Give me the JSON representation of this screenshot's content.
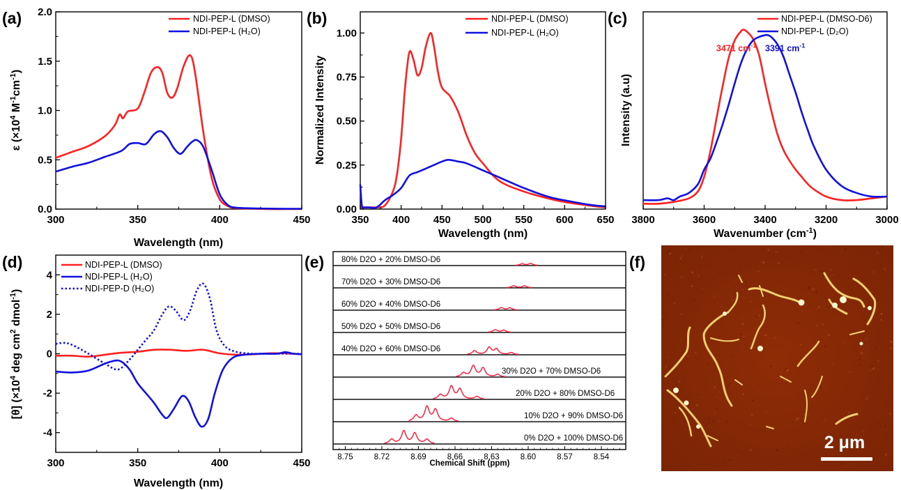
{
  "panels": [
    {
      "id": "a",
      "label": "(a)",
      "chart_data": {
        "type": "line",
        "xlabel": "Wavelength (nm)",
        "ylabel_pre": "ε (×10",
        "ylabel_sup1": "4",
        "ylabel_mid": " M",
        "ylabel_sup2": "-1",
        "ylabel_mid2": "cm",
        "ylabel_sup3": "-1",
        "ylabel_post": ")",
        "xlim": [
          300,
          450
        ],
        "ylim": [
          0,
          2.0
        ],
        "xticks": [
          300,
          350,
          400,
          450
        ],
        "yticks": [
          0.0,
          0.5,
          1.0,
          1.5,
          2.0
        ],
        "ytick_labels": [
          "0.0",
          "0.5",
          "1.0",
          "1.5",
          "2.0"
        ],
        "legend_position": "top-right",
        "series": [
          {
            "name": "NDI-PEP-L (DMSO)",
            "color": "#ff2020",
            "x": [
              300,
              310,
              320,
              330,
              336,
              339,
              341,
              344,
              350,
              354,
              358,
              362,
              365,
              368,
              371,
              374,
              378,
              382,
              385,
              390,
              395,
              400,
              405,
              410,
              420,
              430,
              440,
              450
            ],
            "y": [
              0.52,
              0.58,
              0.64,
              0.74,
              0.85,
              0.96,
              0.92,
              0.99,
              1.02,
              1.18,
              1.38,
              1.44,
              1.38,
              1.18,
              1.13,
              1.22,
              1.45,
              1.56,
              1.38,
              0.78,
              0.32,
              0.1,
              0.03,
              0.01,
              0.005,
              0.0,
              0.0,
              0.0
            ]
          },
          {
            "name": "NDI-PEP-L (H₂O)",
            "color": "#1010e0",
            "x": [
              300,
              310,
              320,
              330,
              340,
              345,
              350,
              355,
              360,
              364,
              368,
              372,
              376,
              380,
              383,
              386,
              390,
              395,
              400,
              405,
              410,
              420,
              430,
              440,
              450
            ],
            "y": [
              0.38,
              0.43,
              0.47,
              0.53,
              0.59,
              0.66,
              0.67,
              0.66,
              0.76,
              0.79,
              0.73,
              0.62,
              0.56,
              0.63,
              0.68,
              0.7,
              0.63,
              0.4,
              0.15,
              0.04,
              0.015,
              0.008,
              0.005,
              0.003,
              0.003
            ]
          }
        ]
      }
    },
    {
      "id": "b",
      "label": "(b)",
      "chart_data": {
        "type": "line",
        "xlabel": "Wavelength (nm)",
        "ylabel": "Normalized Intensity",
        "xlim": [
          350,
          650
        ],
        "ylim": [
          0,
          1.12
        ],
        "xticks": [
          350,
          400,
          450,
          500,
          550,
          600,
          650
        ],
        "yticks": [
          0.0,
          0.25,
          0.5,
          0.75,
          1.0
        ],
        "ytick_labels": [
          "0.00",
          "0.25",
          "0.50",
          "0.75",
          "1.00"
        ],
        "legend_position": "top-right",
        "series": [
          {
            "name": "NDI-PEP-L (DMSO)",
            "color": "#ff2020",
            "x": [
              350,
              360,
              370,
              380,
              390,
              395,
              400,
              405,
              410,
              415,
              420,
              425,
              430,
              436,
              440,
              445,
              450,
              460,
              470,
              480,
              490,
              500,
              520,
              550,
              580,
              600,
              630,
              650
            ],
            "y": [
              0.01,
              0.01,
              0.01,
              0.02,
              0.1,
              0.2,
              0.4,
              0.7,
              0.89,
              0.85,
              0.76,
              0.8,
              0.92,
              1.0,
              0.93,
              0.78,
              0.69,
              0.64,
              0.55,
              0.42,
              0.32,
              0.26,
              0.16,
              0.1,
              0.06,
              0.04,
              0.02,
              0.01
            ]
          },
          {
            "name": "NDI-PEP-L (H₂O)",
            "color": "#1010e0",
            "x": [
              350,
              352,
              355,
              360,
              370,
              380,
              390,
              400,
              410,
              420,
              430,
              440,
              450,
              458,
              470,
              480,
              500,
              520,
              550,
              580,
              600,
              630,
              650
            ],
            "y": [
              0.14,
              0.02,
              0.01,
              0.01,
              0.01,
              0.05,
              0.08,
              0.12,
              0.19,
              0.21,
              0.23,
              0.25,
              0.27,
              0.28,
              0.27,
              0.26,
              0.22,
              0.18,
              0.12,
              0.07,
              0.05,
              0.025,
              0.015
            ]
          }
        ]
      }
    },
    {
      "id": "c",
      "label": "(c)",
      "chart_data": {
        "type": "line",
        "xlabel_pre": "Wavenumber (cm",
        "xlabel_sup": "-1",
        "xlabel_post": ")",
        "ylabel": "Intensity (a.u)",
        "xlim": [
          3800,
          3000
        ],
        "ylim": [
          0,
          1.1
        ],
        "xticks": [
          3800,
          3600,
          3400,
          3200,
          3000
        ],
        "legend_position": "top-right",
        "annotations": [
          {
            "text": "3471 cm",
            "sup": "-1",
            "color": "#ff2020",
            "x": 3560,
            "y": 0.88
          },
          {
            "text": "3391 cm",
            "sup": "-1",
            "color": "#1010e0",
            "x": 3400,
            "y": 0.88
          }
        ],
        "series": [
          {
            "name": "NDI-PEP-L (DMSO-D6)",
            "color": "#ff2020",
            "x": [
              3800,
              3750,
              3700,
              3650,
              3620,
              3600,
              3580,
              3560,
              3540,
              3520,
              3500,
              3480,
              3471,
              3460,
              3440,
              3420,
              3400,
              3380,
              3360,
              3340,
              3320,
              3300,
              3280,
              3260,
              3240,
              3200,
              3150,
              3100,
              3050,
              3000
            ],
            "y": [
              0.03,
              0.03,
              0.04,
              0.06,
              0.1,
              0.18,
              0.32,
              0.5,
              0.68,
              0.84,
              0.94,
              0.99,
              1.0,
              0.99,
              0.95,
              0.86,
              0.7,
              0.55,
              0.42,
              0.33,
              0.27,
              0.22,
              0.18,
              0.14,
              0.11,
              0.07,
              0.05,
              0.05,
              0.06,
              0.07
            ]
          },
          {
            "name": "NDI-PEP-L (D₂O)",
            "color": "#1010e0",
            "x": [
              3800,
              3750,
              3720,
              3700,
              3680,
              3650,
              3620,
              3600,
              3580,
              3560,
              3540,
              3520,
              3500,
              3480,
              3460,
              3440,
              3420,
              3400,
              3391,
              3380,
              3360,
              3340,
              3320,
              3300,
              3280,
              3260,
              3240,
              3200,
              3150,
              3100,
              3050,
              3000
            ],
            "y": [
              0.05,
              0.05,
              0.06,
              0.05,
              0.07,
              0.09,
              0.14,
              0.22,
              0.28,
              0.37,
              0.47,
              0.58,
              0.7,
              0.81,
              0.89,
              0.94,
              0.96,
              0.97,
              0.97,
              0.96,
              0.92,
              0.85,
              0.75,
              0.65,
              0.54,
              0.44,
              0.35,
              0.22,
              0.13,
              0.09,
              0.07,
              0.07
            ]
          }
        ]
      }
    },
    {
      "id": "d",
      "label": "(d)",
      "chart_data": {
        "type": "line",
        "xlabel": "Wavelength (nm)",
        "ylabel_pre": "[θ] (×10",
        "ylabel_sup1": "4",
        "ylabel_mid": " deg cm",
        "ylabel_sup2": "2",
        "ylabel_mid2": " dmol",
        "ylabel_sup3": "-1",
        "ylabel_post": ")",
        "xlim": [
          300,
          450
        ],
        "ylim": [
          -5,
          5
        ],
        "xticks": [
          300,
          350,
          400,
          450
        ],
        "yticks": [
          -4,
          -2,
          0,
          2,
          4
        ],
        "ytick_labels": [
          "-4",
          "-2",
          "0",
          "2",
          "4"
        ],
        "legend_position": "top-left",
        "series": [
          {
            "name": "NDI-PEP-L (DMSO)",
            "color": "#ff2020",
            "dash": "solid",
            "x": [
              300,
              310,
              320,
              330,
              340,
              350,
              360,
              370,
              380,
              390,
              400,
              410,
              420,
              430,
              440,
              450
            ],
            "y": [
              -0.1,
              -0.1,
              -0.15,
              -0.05,
              0.05,
              0.1,
              0.2,
              0.2,
              0.15,
              0.2,
              0.02,
              -0.05,
              -0.03,
              0.02,
              0.02,
              -0.03
            ]
          },
          {
            "name": "NDI-PEP-L (H₂O)",
            "color": "#1010e0",
            "dash": "solid",
            "x": [
              300,
              310,
              320,
              330,
              336,
              340,
              345,
              350,
              355,
              360,
              365,
              368,
              372,
              377,
              381,
              385,
              389,
              393,
              397,
              402,
              408,
              415,
              425,
              435,
              440,
              445,
              450
            ],
            "y": [
              -0.9,
              -0.95,
              -0.85,
              -0.5,
              -0.35,
              -0.4,
              -0.8,
              -1.5,
              -2.0,
              -2.5,
              -3.1,
              -3.25,
              -2.8,
              -2.15,
              -2.4,
              -3.2,
              -3.7,
              -3.3,
              -2.0,
              -0.8,
              -0.2,
              -0.05,
              0.0,
              0.0,
              0.08,
              0.0,
              -0.02
            ]
          },
          {
            "name": "NDI-PEP-D (H₂O)",
            "color": "#1010e0",
            "dash": "dotted",
            "x": [
              300,
              305,
              310,
              320,
              330,
              338,
              345,
              350,
              355,
              360,
              365,
              369,
              373,
              378,
              382,
              386,
              390,
              394,
              398,
              403,
              410,
              420,
              430,
              440,
              450
            ],
            "y": [
              0.5,
              0.55,
              0.45,
              0.0,
              -0.5,
              -0.8,
              -0.3,
              0.2,
              0.7,
              1.2,
              2.0,
              2.4,
              2.2,
              1.7,
              2.2,
              3.2,
              3.55,
              2.8,
              1.2,
              0.4,
              0.1,
              0.0,
              0.0,
              0.0,
              0.0
            ]
          }
        ]
      }
    },
    {
      "id": "e",
      "label": "(e)",
      "chart_data": {
        "type": "line",
        "xlabel": "Chemical Shift (ppm)",
        "xlim": [
          8.76,
          8.52
        ],
        "xticks": [
          8.75,
          8.72,
          8.69,
          8.66,
          8.63,
          8.6,
          8.57,
          8.54
        ],
        "xtick_labels": [
          "8.75",
          "8.72",
          "8.69",
          "8.66",
          "8.63",
          "8.60",
          "8.57",
          "8.54"
        ],
        "peak_color": "#ff2040",
        "baseline_color": "#111111",
        "traces": [
          {
            "label": "80% D2O + 20% DMSO-D6",
            "peaks": [
              8.605,
              8.598
            ],
            "heights": [
              0.15,
              0.18
            ]
          },
          {
            "label": "70% D2O + 30% DMSO-D6",
            "peaks": [
              8.612,
              8.603
            ],
            "heights": [
              0.18,
              0.18
            ]
          },
          {
            "label": "60% D2O + 40% DMSO-D6",
            "peaks": [
              8.622,
              8.615
            ],
            "heights": [
              0.22,
              0.2
            ]
          },
          {
            "label": "50% D2O + 50% DMSO-D6",
            "peaks": [
              8.627,
              8.62
            ],
            "heights": [
              0.24,
              0.2
            ]
          },
          {
            "label": "40% D2O + 60% DMSO-D6",
            "peaks": [
              8.644,
              8.632,
              8.626,
              8.614
            ],
            "heights": [
              0.35,
              0.65,
              0.5,
              0.18
            ]
          },
          {
            "label": "30% D2O + 70% DMSO-D6",
            "peaks": [
              8.653,
              8.645,
              8.637,
              8.625
            ],
            "heights": [
              0.35,
              1.0,
              0.8,
              0.22
            ]
          },
          {
            "label": "20% D2O + 80% DMSO-D6",
            "peaks": [
              8.672,
              8.663,
              8.656,
              8.642
            ],
            "heights": [
              0.4,
              1.15,
              0.9,
              0.25
            ]
          },
          {
            "label": "10% D2O + 90% DMSO-D6",
            "peaks": [
              8.692,
              8.683,
              8.676,
              8.663
            ],
            "heights": [
              0.55,
              1.3,
              1.05,
              0.28
            ]
          },
          {
            "label": "0% D2O + 100% DMSO-D6",
            "peaks": [
              8.712,
              8.702,
              8.693,
              8.683
            ],
            "heights": [
              0.4,
              1.15,
              0.95,
              0.4
            ]
          }
        ]
      }
    },
    {
      "id": "f",
      "label": "(f)",
      "image": {
        "description_hidden": true,
        "scale_text": "2 μm",
        "background_color": "#8a2a06",
        "fiber_color": "#f4d070"
      }
    }
  ]
}
